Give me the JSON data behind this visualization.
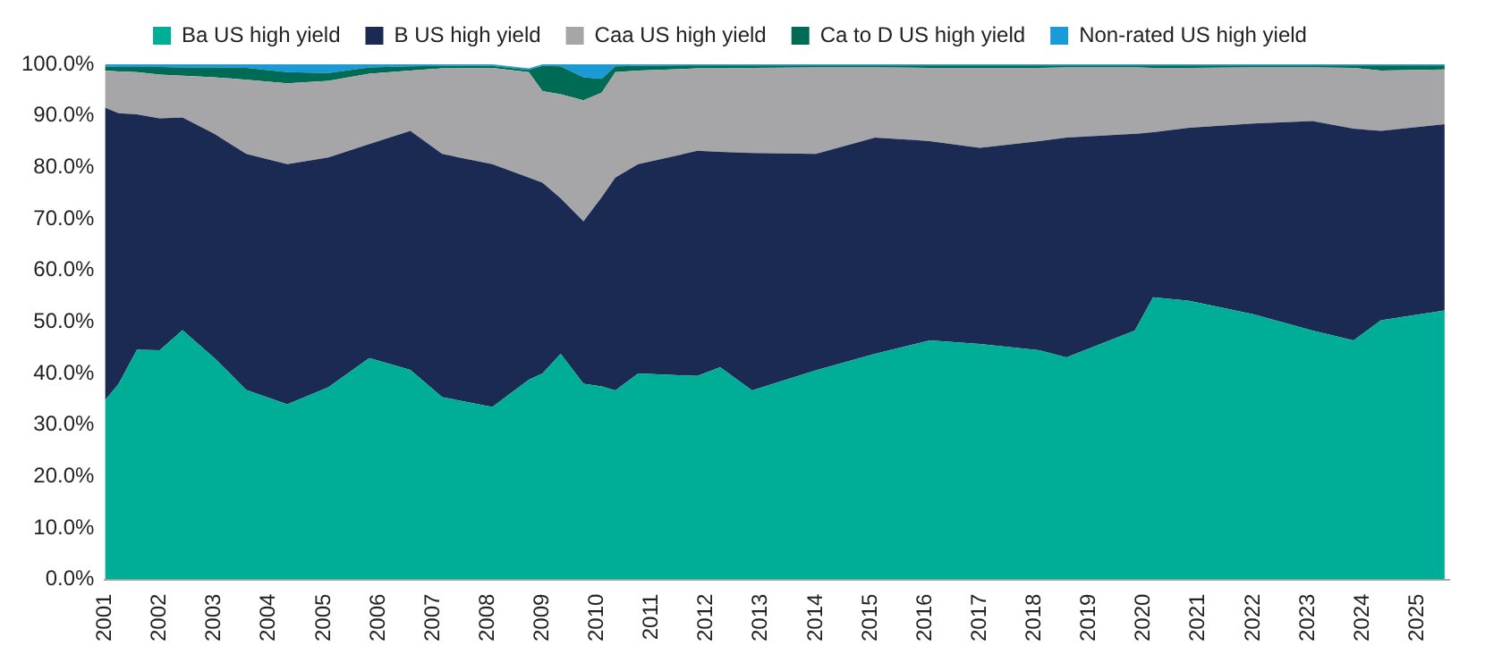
{
  "chart_data": {
    "type": "area",
    "stacked": true,
    "x": [
      "2001-01",
      "2001-04",
      "2001-08",
      "2002-01",
      "2002-06",
      "2003-01",
      "2003-08",
      "2004-05",
      "2005-02",
      "2005-11",
      "2006-08",
      "2007-03",
      "2008-02",
      "2008-10",
      "2009-01",
      "2009-05",
      "2009-10",
      "2010-02",
      "2010-05",
      "2010-10",
      "2011-11",
      "2012-04",
      "2012-11",
      "2014-01",
      "2015-02",
      "2016-02",
      "2017-01",
      "2018-02",
      "2018-08",
      "2019-11",
      "2020-03",
      "2020-11",
      "2022-01",
      "2023-02",
      "2023-11",
      "2024-05",
      "2025-07"
    ],
    "series": [
      {
        "name": "Ba US high yield",
        "color": "#00ad96",
        "values": [
          34.8,
          38,
          44.6,
          44.5,
          48.4,
          43,
          36.8,
          34,
          37.3,
          43,
          40.7,
          35.4,
          33.5,
          38.8,
          40,
          43.8,
          38,
          37.5,
          36.7,
          40,
          39.5,
          41.2,
          36.7,
          40.6,
          43.8,
          46.4,
          45.7,
          44.5,
          43.1,
          48.3,
          54.8,
          54.1,
          51.5,
          48.3,
          46.4,
          50.3,
          52.2
        ]
      },
      {
        "name": "B US high yield",
        "color": "#1b2a52",
        "values": [
          56.8,
          52.5,
          45.7,
          45,
          41.3,
          43.5,
          45.8,
          46.6,
          44.6,
          41.5,
          46.4,
          47.2,
          47.1,
          39.2,
          37,
          30.2,
          31.5,
          36.7,
          41.3,
          40.6,
          43.7,
          41.8,
          46.1,
          42,
          42,
          38.7,
          38.1,
          40.6,
          42.7,
          38.2,
          32,
          33.6,
          37,
          40.7,
          41.1,
          36.8,
          36.2
        ]
      },
      {
        "name": "Caa US high yield",
        "color": "#a6a6a8",
        "values": [
          7.2,
          8.1,
          8.2,
          8.5,
          8.1,
          11,
          14.4,
          15.7,
          14.9,
          13.7,
          11.7,
          16.6,
          18.7,
          20.5,
          17.8,
          20.2,
          23.5,
          20.3,
          20.5,
          18.2,
          16,
          16.2,
          16.5,
          16.8,
          13.6,
          14.2,
          15.5,
          14.2,
          13.6,
          12.9,
          12.5,
          11.6,
          10.9,
          10.4,
          11.8,
          11.7,
          10.6
        ]
      },
      {
        "name": "Ca to D US high yield",
        "color": "#006b55",
        "values": [
          0.8,
          0.9,
          1,
          1.5,
          1.6,
          1.9,
          2.3,
          2.2,
          1.5,
          1.2,
          0.8,
          0.5,
          0.4,
          0.4,
          4.9,
          5.4,
          4.5,
          2.7,
          1.1,
          0.9,
          0.6,
          0.6,
          0.5,
          0.4,
          0.4,
          0.5,
          0.5,
          0.5,
          0.4,
          0.4,
          0.5,
          0.5,
          0.4,
          0.4,
          0.5,
          1,
          0.8
        ]
      },
      {
        "name": "Non-rated US high yield",
        "color": "#1a9bd7",
        "values": [
          0.4,
          0.5,
          0.5,
          0.5,
          0.6,
          0.6,
          0.7,
          1.5,
          1.7,
          0.6,
          0.4,
          0.3,
          0.3,
          0.3,
          0.3,
          0.4,
          2.5,
          2.8,
          0.4,
          0.3,
          0.2,
          0.2,
          0.2,
          0.2,
          0.2,
          0.2,
          0.2,
          0.2,
          0.2,
          0.2,
          0.2,
          0.2,
          0.2,
          0.2,
          0.2,
          0.2,
          0.2
        ]
      }
    ],
    "xlim": [
      "2001-01",
      "2025-08"
    ],
    "xticks": [
      "2001",
      "2002",
      "2003",
      "2004",
      "2005",
      "2006",
      "2007",
      "2008",
      "2009",
      "2010",
      "2011",
      "2012",
      "2013",
      "2014",
      "2015",
      "2016",
      "2017",
      "2018",
      "2019",
      "2020",
      "2021",
      "2022",
      "2023",
      "2024",
      "2025"
    ],
    "ylim": [
      0,
      100
    ],
    "yticks": [
      {
        "value": 0,
        "label": "0.0%"
      },
      {
        "value": 10,
        "label": "10.0%"
      },
      {
        "value": 20,
        "label": "20.0%"
      },
      {
        "value": 30,
        "label": "30.0%"
      },
      {
        "value": 40,
        "label": "40.0%"
      },
      {
        "value": 50,
        "label": "50.0%"
      },
      {
        "value": 60,
        "label": "60.0%"
      },
      {
        "value": 70,
        "label": "70.0%"
      },
      {
        "value": 80,
        "label": "80.0%"
      },
      {
        "value": 90,
        "label": "90.0%"
      },
      {
        "value": 100,
        "label": "100.0%"
      }
    ],
    "legend": "top",
    "grid": false
  }
}
